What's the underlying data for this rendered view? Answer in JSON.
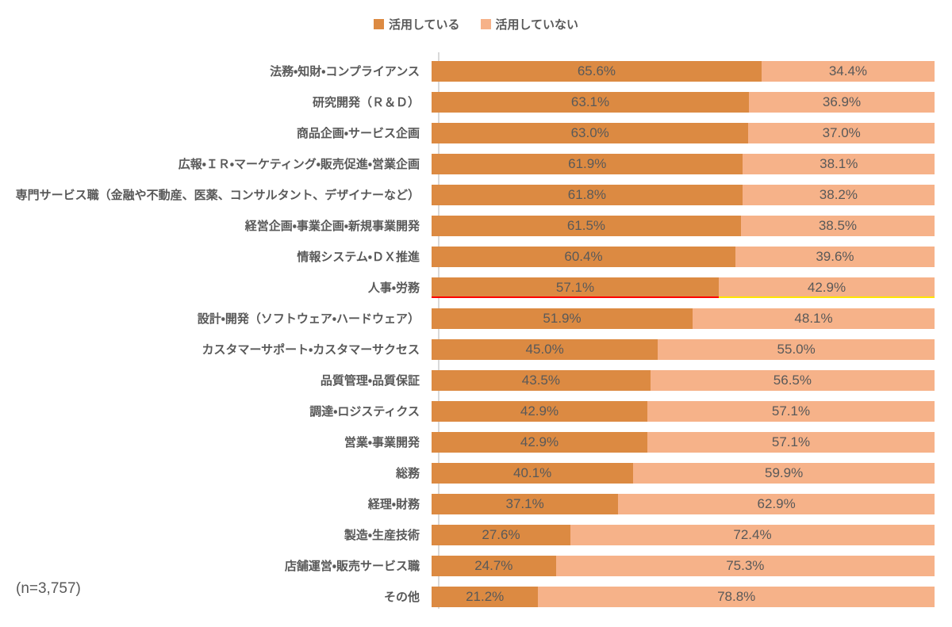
{
  "legend": {
    "series1": "活用している",
    "series2": "活用していない"
  },
  "note": "(n=3,757)",
  "colors": {
    "active": "#DC8A42",
    "inactive": "#F6B289",
    "text": "#595959",
    "axis": "#D9D9D9",
    "highlight_active_underline": "#FF0000",
    "highlight_inactive_underline": "#FFE500"
  },
  "chart_data": {
    "type": "bar",
    "orientation": "horizontal-stacked",
    "unit": "%",
    "xlim": [
      0,
      100
    ],
    "legend_position": "top-center",
    "sample_note": "(n=3,757)",
    "series_names": [
      "活用している",
      "活用していない"
    ],
    "categories": [
      "法務・知財・コンプライアンス",
      "研究開発（Ｒ＆Ｄ）",
      "商品企画・サービス企画",
      "広報・ＩＲ・マーケティング・販売促進・営業企画",
      "専門サービス職（金融や不動産、医薬、コンサルタント、デザイナーなど）",
      "経営企画・事業企画・新規事業開発",
      "情報システム・ＤＸ推進",
      "人事・労務",
      "設計・開発（ソフトウェア・ハードウェア）",
      "カスタマーサポート・カスタマーサクセス",
      "品質管理・品質保証",
      "調達・ロジスティクス",
      "営業・事業開発",
      "総務",
      "経理・財務",
      "製造・生産技術",
      "店舗運営・販売サービス職",
      "その他"
    ],
    "series": [
      {
        "name": "活用している",
        "values": [
          65.6,
          63.1,
          63.0,
          61.9,
          61.8,
          61.5,
          60.4,
          57.1,
          51.9,
          45.0,
          43.5,
          42.9,
          42.9,
          40.1,
          37.1,
          27.6,
          24.7,
          21.2
        ]
      },
      {
        "name": "活用していない",
        "values": [
          34.4,
          36.9,
          37.0,
          38.1,
          38.2,
          38.5,
          39.6,
          42.9,
          48.1,
          55.0,
          56.5,
          57.1,
          57.1,
          59.9,
          62.9,
          72.4,
          75.3,
          78.8
        ]
      }
    ],
    "highlighted_category_index": 7
  }
}
